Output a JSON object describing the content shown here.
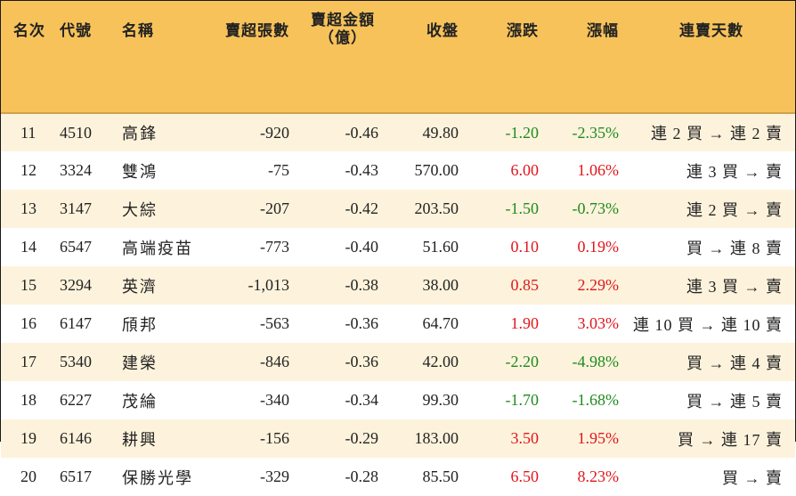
{
  "headers": {
    "rank": "名次",
    "code": "代號",
    "name": "名稱",
    "sell_shares": "賣超張數",
    "sell_amount_line1": "賣超金額",
    "sell_amount_line2": "（億）",
    "close": "收盤",
    "change": "漲跌",
    "change_pct": "漲幅",
    "streak": "連賣天數"
  },
  "colors": {
    "header_bg": "#f7c25a",
    "row_alt_bg": "#fdf3dc",
    "up": "#e0161d",
    "down": "#1f8a1f"
  },
  "rows": [
    {
      "rank": "11",
      "code": "4510",
      "name": "高鋒",
      "sell_shares": "-920",
      "sell_amount": "-0.46",
      "close": "49.80",
      "change": "-1.20",
      "change_pct": "-2.35%",
      "direction": "down",
      "streak": "連 2 買 → 連 2 賣"
    },
    {
      "rank": "12",
      "code": "3324",
      "name": "雙鴻",
      "sell_shares": "-75",
      "sell_amount": "-0.43",
      "close": "570.00",
      "change": "6.00",
      "change_pct": "1.06%",
      "direction": "up",
      "streak": "連 3 買 → 賣"
    },
    {
      "rank": "13",
      "code": "3147",
      "name": "大綜",
      "sell_shares": "-207",
      "sell_amount": "-0.42",
      "close": "203.50",
      "change": "-1.50",
      "change_pct": "-0.73%",
      "direction": "down",
      "streak": "連 2 買 → 賣"
    },
    {
      "rank": "14",
      "code": "6547",
      "name": "高端疫苗",
      "sell_shares": "-773",
      "sell_amount": "-0.40",
      "close": "51.60",
      "change": "0.10",
      "change_pct": "0.19%",
      "direction": "up",
      "streak": "買 → 連 8 賣"
    },
    {
      "rank": "15",
      "code": "3294",
      "name": "英濟",
      "sell_shares": "-1,013",
      "sell_amount": "-0.38",
      "close": "38.00",
      "change": "0.85",
      "change_pct": "2.29%",
      "direction": "up",
      "streak": "連 3 買 → 賣"
    },
    {
      "rank": "16",
      "code": "6147",
      "name": "頎邦",
      "sell_shares": "-563",
      "sell_amount": "-0.36",
      "close": "64.70",
      "change": "1.90",
      "change_pct": "3.03%",
      "direction": "up",
      "streak": "連 10 買 → 連 10 賣"
    },
    {
      "rank": "17",
      "code": "5340",
      "name": "建榮",
      "sell_shares": "-846",
      "sell_amount": "-0.36",
      "close": "42.00",
      "change": "-2.20",
      "change_pct": "-4.98%",
      "direction": "down",
      "streak": "買 → 連 4 賣"
    },
    {
      "rank": "18",
      "code": "6227",
      "name": "茂綸",
      "sell_shares": "-340",
      "sell_amount": "-0.34",
      "close": "99.30",
      "change": "-1.70",
      "change_pct": "-1.68%",
      "direction": "down",
      "streak": "買 → 連 5 賣"
    },
    {
      "rank": "19",
      "code": "6146",
      "name": "耕興",
      "sell_shares": "-156",
      "sell_amount": "-0.29",
      "close": "183.00",
      "change": "3.50",
      "change_pct": "1.95%",
      "direction": "up",
      "streak": "買 → 連 17 賣"
    },
    {
      "rank": "20",
      "code": "6517",
      "name": "保勝光學",
      "sell_shares": "-329",
      "sell_amount": "-0.28",
      "close": "85.50",
      "change": "6.50",
      "change_pct": "8.23%",
      "direction": "up",
      "streak": "買 → 賣"
    }
  ]
}
